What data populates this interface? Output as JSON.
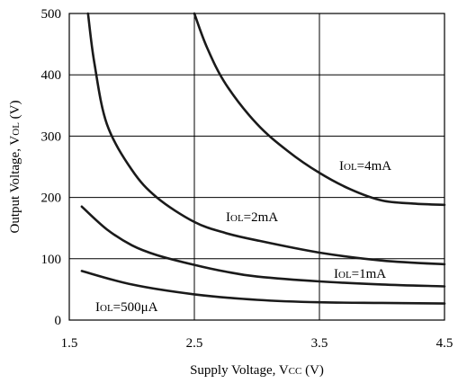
{
  "chart_data": {
    "type": "line",
    "xlabel": {
      "main": "Supply Voltage, V",
      "sub": "CC",
      "unit": " (V)"
    },
    "ylabel": {
      "main": "Output Voltage, V",
      "sub": "OL",
      "unit": " (V)"
    },
    "xlim": [
      1.5,
      4.5
    ],
    "ylim": [
      0,
      500
    ],
    "x_ticks": [
      "1.5",
      "2.5",
      "3.5",
      "4.5"
    ],
    "y_ticks": [
      "0",
      "100",
      "200",
      "300",
      "400",
      "500"
    ],
    "grid": true,
    "series": [
      {
        "name": {
          "main": "I",
          "sub": "OL",
          "rest": "=4mA"
        },
        "x": [
          2.5,
          2.6,
          2.75,
          3.0,
          3.25,
          3.5,
          3.75,
          4.0,
          4.25,
          4.5
        ],
        "values": [
          500,
          445,
          385,
          320,
          275,
          240,
          213,
          195,
          190,
          188
        ]
      },
      {
        "name": {
          "main": "I",
          "sub": "OL",
          "rest": "=2mA"
        },
        "x": [
          1.65,
          1.7,
          1.8,
          2.0,
          2.2,
          2.5,
          2.75,
          3.0,
          3.5,
          4.0,
          4.5
        ],
        "values": [
          500,
          420,
          320,
          245,
          200,
          160,
          142,
          130,
          110,
          97,
          91
        ]
      },
      {
        "name": {
          "main": "I",
          "sub": "OL",
          "rest": "=1mA"
        },
        "x": [
          1.6,
          1.8,
          2.0,
          2.2,
          2.5,
          2.75,
          3.0,
          3.5,
          4.0,
          4.5
        ],
        "values": [
          185,
          148,
          122,
          106,
          90,
          79,
          71,
          63,
          58,
          55
        ]
      },
      {
        "name": {
          "main": "I",
          "sub": "OL",
          "rest": "=500μA"
        },
        "x": [
          1.6,
          2.0,
          2.5,
          3.0,
          3.5,
          4.0,
          4.5
        ],
        "values": [
          80,
          58,
          42,
          33,
          29,
          28,
          27
        ]
      }
    ]
  }
}
